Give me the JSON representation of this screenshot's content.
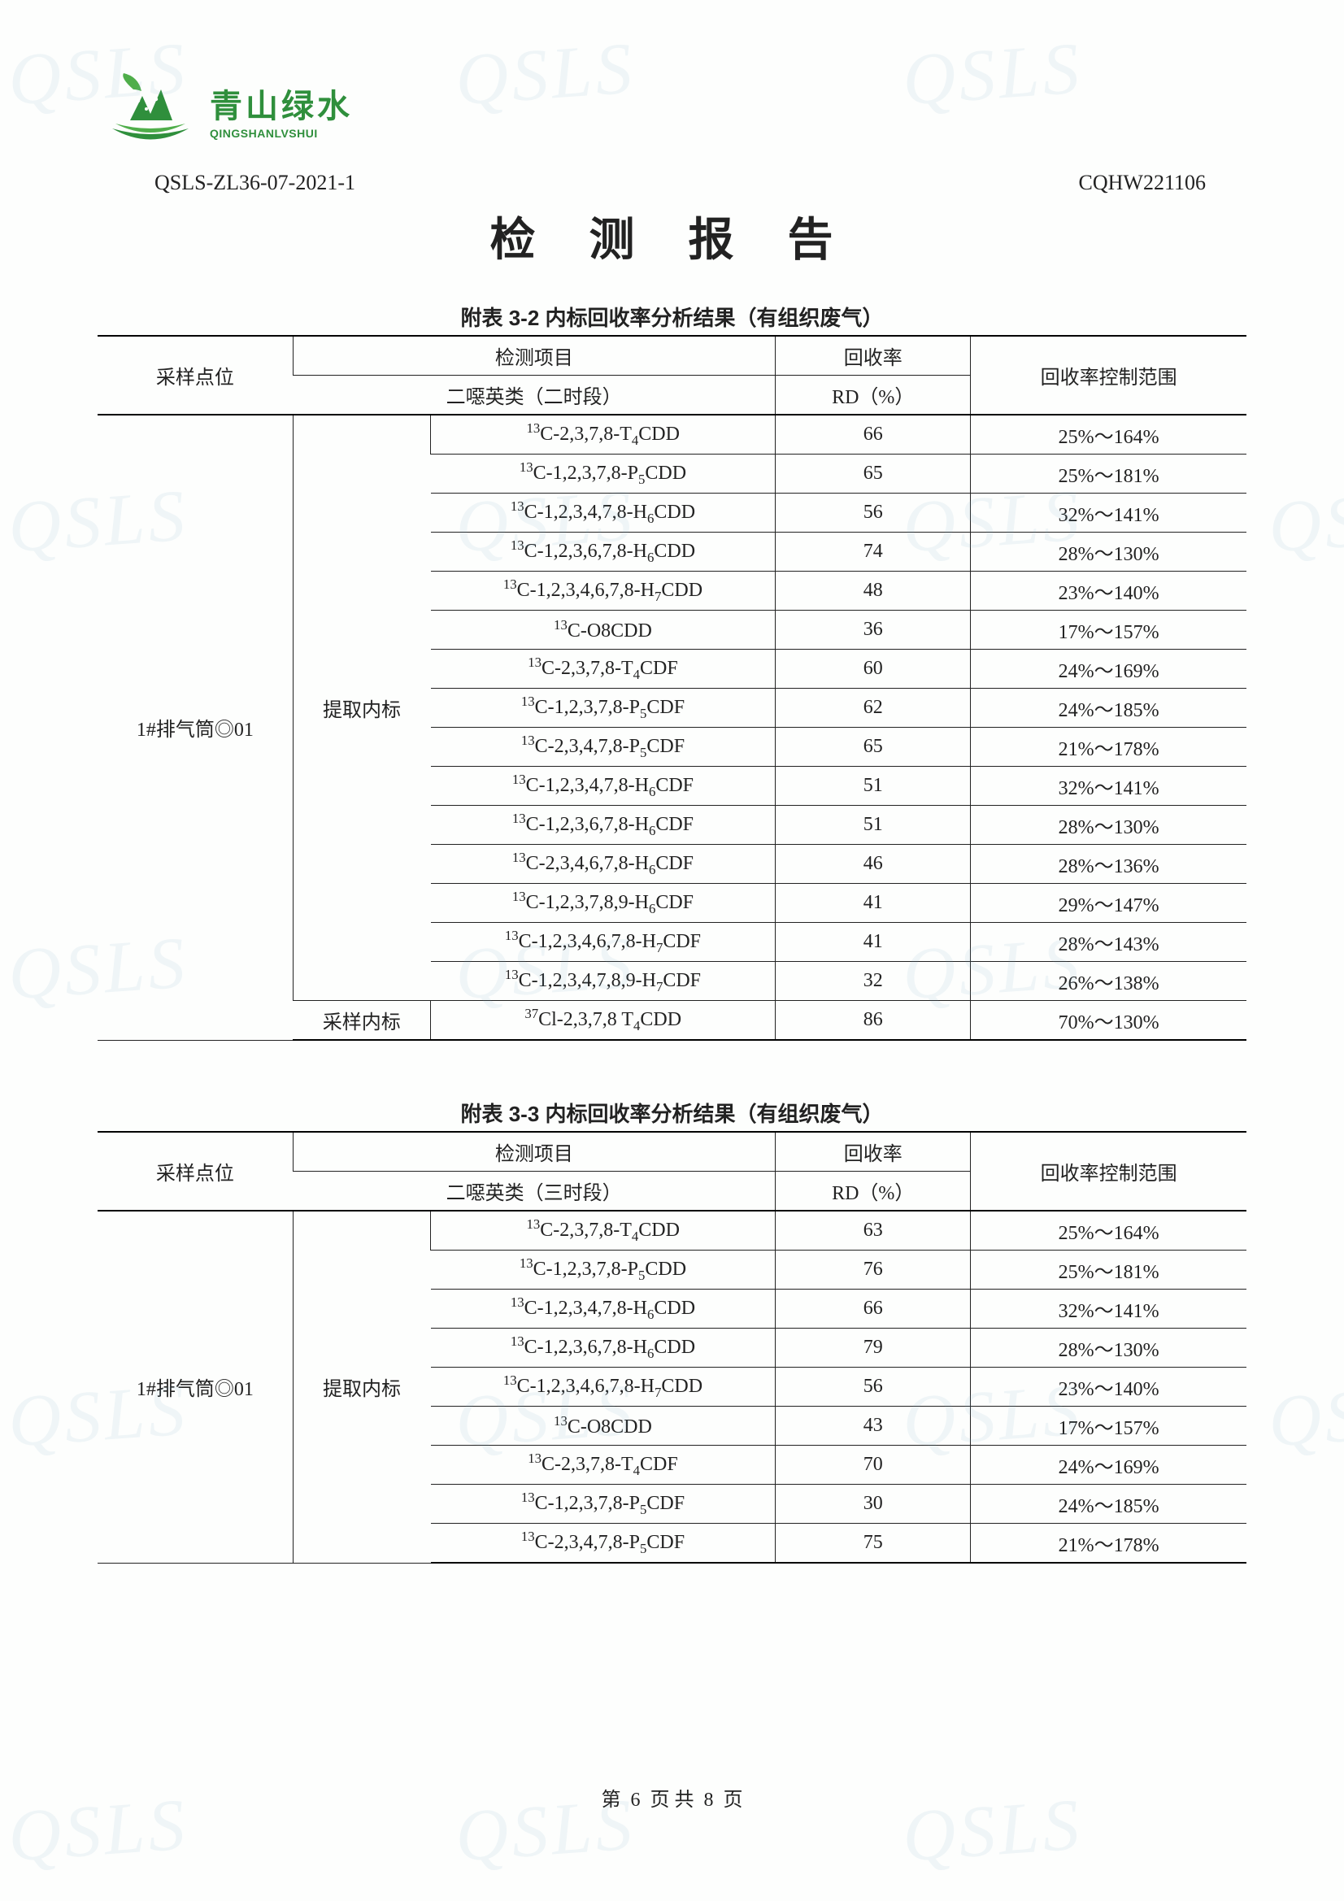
{
  "logo": {
    "cn": "青山绿水",
    "en": "QINGSHANLVSHUI",
    "color": "#2f8f3c"
  },
  "doc_code_left": "QSLS-ZL36-07-2021-1",
  "doc_code_right": "CQHW221106",
  "report_title": "检 测 报 告",
  "watermark_text": "QSLS",
  "table1": {
    "caption": "附表 3-2  内标回收率分析结果（有组织废气）",
    "headers": {
      "sampling_point": "采样点位",
      "test_item": "检测项目",
      "recovery": "回收率",
      "recovery_range": "回收率控制范围",
      "subheader_category": "二噁英类（二时段）",
      "subheader_rd": "RD（%）"
    },
    "sampling_point": "1#排气筒◎01",
    "std_label_extract": "提取内标",
    "std_label_sampling": "采样内标",
    "rows_extract": [
      {
        "compound_html": "<sup>13</sup>C-2,3,7,8-T<sub>4</sub>CDD",
        "rd": "66",
        "range": "25%～164%"
      },
      {
        "compound_html": "<sup>13</sup>C-1,2,3,7,8-P<sub>5</sub>CDD",
        "rd": "65",
        "range": "25%～181%"
      },
      {
        "compound_html": "<sup>13</sup>C-1,2,3,4,7,8-H<sub>6</sub>CDD",
        "rd": "56",
        "range": "32%～141%"
      },
      {
        "compound_html": "<sup>13</sup>C-1,2,3,6,7,8-H<sub>6</sub>CDD",
        "rd": "74",
        "range": "28%～130%"
      },
      {
        "compound_html": "<sup>13</sup>C-1,2,3,4,6,7,8-H<sub>7</sub>CDD",
        "rd": "48",
        "range": "23%～140%"
      },
      {
        "compound_html": "<sup>13</sup>C-O8CDD",
        "rd": "36",
        "range": "17%～157%"
      },
      {
        "compound_html": "<sup>13</sup>C-2,3,7,8-T<sub>4</sub>CDF",
        "rd": "60",
        "range": "24%～169%"
      },
      {
        "compound_html": "<sup>13</sup>C-1,2,3,7,8-P<sub>5</sub>CDF",
        "rd": "62",
        "range": "24%～185%"
      },
      {
        "compound_html": "<sup>13</sup>C-2,3,4,7,8-P<sub>5</sub>CDF",
        "rd": "65",
        "range": "21%～178%"
      },
      {
        "compound_html": "<sup>13</sup>C-1,2,3,4,7,8-H<sub>6</sub>CDF",
        "rd": "51",
        "range": "32%～141%"
      },
      {
        "compound_html": "<sup>13</sup>C-1,2,3,6,7,8-H<sub>6</sub>CDF",
        "rd": "51",
        "range": "28%～130%"
      },
      {
        "compound_html": "<sup>13</sup>C-2,3,4,6,7,8-H<sub>6</sub>CDF",
        "rd": "46",
        "range": "28%～136%"
      },
      {
        "compound_html": "<sup>13</sup>C-1,2,3,7,8,9-H<sub>6</sub>CDF",
        "rd": "41",
        "range": "29%～147%"
      },
      {
        "compound_html": "<sup>13</sup>C-1,2,3,4,6,7,8-H<sub>7</sub>CDF",
        "rd": "41",
        "range": "28%～143%"
      },
      {
        "compound_html": "<sup>13</sup>C-1,2,3,4,7,8,9-H<sub>7</sub>CDF",
        "rd": "32",
        "range": "26%～138%"
      }
    ],
    "row_sampling": {
      "compound_html": "<sup>37</sup>Cl-2,3,7,8 T<sub>4</sub>CDD",
      "rd": "86",
      "range": "70%～130%"
    }
  },
  "table2": {
    "caption": "附表 3-3  内标回收率分析结果（有组织废气）",
    "headers": {
      "sampling_point": "采样点位",
      "test_item": "检测项目",
      "recovery": "回收率",
      "recovery_range": "回收率控制范围",
      "subheader_category": "二噁英类（三时段）",
      "subheader_rd": "RD（%）"
    },
    "sampling_point": "1#排气筒◎01",
    "std_label_extract": "提取内标",
    "rows_extract": [
      {
        "compound_html": "<sup>13</sup>C-2,3,7,8-T<sub>4</sub>CDD",
        "rd": "63",
        "range": "25%～164%"
      },
      {
        "compound_html": "<sup>13</sup>C-1,2,3,7,8-P<sub>5</sub>CDD",
        "rd": "76",
        "range": "25%～181%"
      },
      {
        "compound_html": "<sup>13</sup>C-1,2,3,4,7,8-H<sub>6</sub>CDD",
        "rd": "66",
        "range": "32%～141%"
      },
      {
        "compound_html": "<sup>13</sup>C-1,2,3,6,7,8-H<sub>6</sub>CDD",
        "rd": "79",
        "range": "28%～130%"
      },
      {
        "compound_html": "<sup>13</sup>C-1,2,3,4,6,7,8-H<sub>7</sub>CDD",
        "rd": "56",
        "range": "23%～140%"
      },
      {
        "compound_html": "<sup>13</sup>C-O8CDD",
        "rd": "43",
        "range": "17%～157%"
      },
      {
        "compound_html": "<sup>13</sup>C-2,3,7,8-T<sub>4</sub>CDF",
        "rd": "70",
        "range": "24%～169%"
      },
      {
        "compound_html": "<sup>13</sup>C-1,2,3,7,8-P<sub>5</sub>CDF",
        "rd": "30",
        "range": "24%～185%"
      },
      {
        "compound_html": "<sup>13</sup>C-2,3,4,7,8-P<sub>5</sub>CDF",
        "rd": "75",
        "range": "21%～178%"
      }
    ]
  },
  "footer": {
    "page_current": "6",
    "page_total": "8",
    "prefix": "第",
    "mid": "页 共",
    "suffix": "页"
  }
}
